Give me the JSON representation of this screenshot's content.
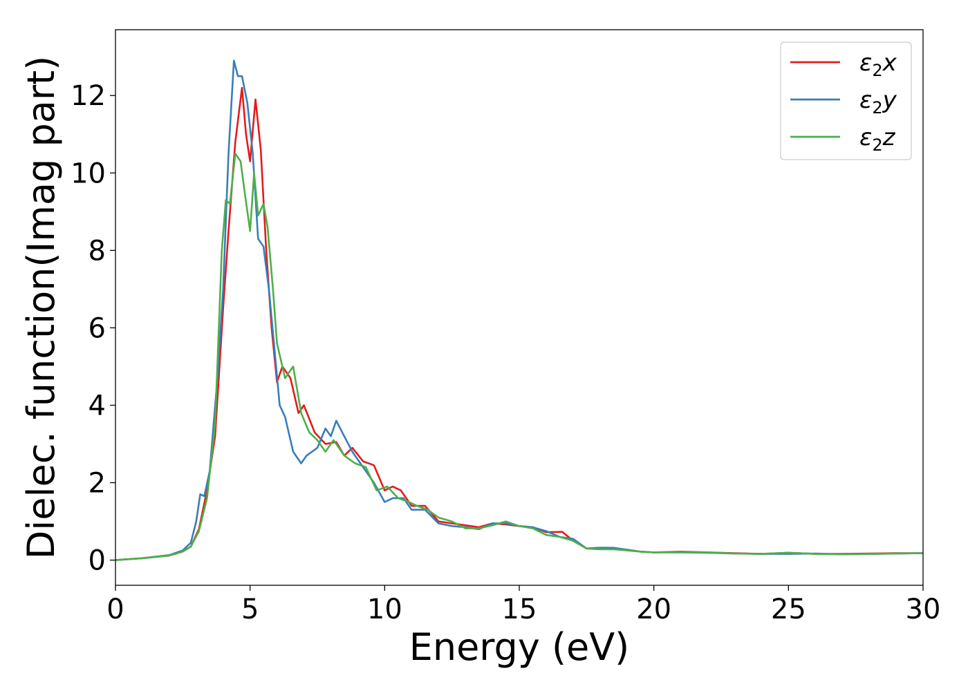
{
  "chart_data": {
    "type": "line",
    "title": "",
    "xlabel": "Energy (eV)",
    "ylabel": "Dielec. function(Imag part)",
    "xlim": [
      0,
      30
    ],
    "ylim": [
      -0.65,
      13.7
    ],
    "xticks": [
      0,
      5,
      10,
      15,
      20,
      25,
      30
    ],
    "yticks": [
      0,
      2,
      4,
      6,
      8,
      10,
      12
    ],
    "xtick_labels": [
      "0",
      "5",
      "10",
      "15",
      "20",
      "25",
      "30"
    ],
    "ytick_labels": [
      "0",
      "2",
      "4",
      "6",
      "8",
      "10",
      "12"
    ],
    "grid": false,
    "legend_position": "top-right",
    "series": [
      {
        "name": "ε2x",
        "symbol": "ε",
        "subscript": "2",
        "suffix": "x",
        "color": "#e41a1c",
        "x": [
          0,
          1,
          2,
          2.5,
          2.8,
          3.1,
          3.4,
          3.7,
          4.0,
          4.2,
          4.45,
          4.7,
          4.85,
          5.0,
          5.2,
          5.4,
          5.6,
          5.8,
          6.0,
          6.2,
          6.5,
          6.8,
          7.0,
          7.4,
          7.8,
          8.2,
          8.5,
          8.8,
          9.2,
          9.6,
          10.0,
          10.3,
          10.6,
          11.0,
          11.5,
          12.0,
          12.5,
          13.0,
          13.5,
          14.0,
          14.5,
          15.0,
          15.5,
          16.0,
          16.6,
          17.0,
          17.5,
          18.0,
          18.5,
          19.0,
          19.5,
          20.0,
          21.0,
          22.0,
          23.0,
          24.0,
          25.0,
          26.0,
          27.0,
          28.0,
          29.0,
          30.0
        ],
        "values": [
          0,
          0.05,
          0.12,
          0.22,
          0.35,
          0.8,
          1.8,
          3.2,
          6.5,
          8.5,
          10.8,
          12.2,
          11.0,
          10.3,
          11.9,
          10.6,
          8.0,
          6.0,
          4.6,
          5.0,
          4.7,
          3.8,
          4.0,
          3.3,
          3.0,
          3.05,
          2.7,
          2.9,
          2.55,
          2.45,
          1.8,
          1.9,
          1.8,
          1.4,
          1.4,
          1.0,
          0.95,
          0.9,
          0.85,
          0.95,
          0.92,
          0.88,
          0.85,
          0.72,
          0.73,
          0.5,
          0.3,
          0.32,
          0.3,
          0.27,
          0.22,
          0.2,
          0.22,
          0.2,
          0.18,
          0.16,
          0.19,
          0.16,
          0.16,
          0.17,
          0.18,
          0.18
        ]
      },
      {
        "name": "ε2y",
        "symbol": "ε",
        "subscript": "2",
        "suffix": "y",
        "color": "#377eb8",
        "x": [
          0,
          1,
          2,
          2.5,
          2.8,
          3.0,
          3.15,
          3.3,
          3.5,
          3.8,
          4.0,
          4.2,
          4.4,
          4.55,
          4.7,
          4.9,
          5.1,
          5.3,
          5.5,
          5.7,
          5.9,
          6.1,
          6.3,
          6.6,
          6.9,
          7.1,
          7.5,
          7.8,
          8.0,
          8.2,
          8.5,
          8.8,
          9.2,
          9.6,
          10.0,
          10.3,
          10.7,
          11.0,
          11.5,
          12.0,
          12.5,
          13.0,
          13.5,
          14.0,
          14.5,
          15.0,
          15.5,
          16.0,
          16.5,
          17.0,
          17.5,
          18.0,
          18.5,
          19.0,
          19.5,
          20.0,
          21.0,
          22.0,
          23.0,
          24.0,
          25.0,
          26.0,
          27.0,
          28.0,
          29.0,
          30.0
        ],
        "values": [
          0,
          0.05,
          0.13,
          0.25,
          0.45,
          1.0,
          1.7,
          1.65,
          2.3,
          4.8,
          7.0,
          10.5,
          12.9,
          12.5,
          12.5,
          11.8,
          10.5,
          8.3,
          8.1,
          7.0,
          5.5,
          4.0,
          3.7,
          2.8,
          2.5,
          2.7,
          2.9,
          3.4,
          3.2,
          3.6,
          3.2,
          2.8,
          2.4,
          2.0,
          1.5,
          1.6,
          1.6,
          1.3,
          1.3,
          0.95,
          0.88,
          0.85,
          0.8,
          0.95,
          0.95,
          0.88,
          0.85,
          0.75,
          0.6,
          0.55,
          0.3,
          0.32,
          0.32,
          0.27,
          0.22,
          0.2,
          0.2,
          0.19,
          0.17,
          0.16,
          0.16,
          0.17,
          0.15,
          0.16,
          0.17,
          0.18
        ]
      },
      {
        "name": "ε2z",
        "symbol": "ε",
        "subscript": "2",
        "suffix": "z",
        "color": "#4daf4a",
        "x": [
          0,
          1,
          2,
          2.5,
          2.8,
          3.1,
          3.4,
          3.7,
          3.95,
          4.1,
          4.25,
          4.45,
          4.65,
          4.8,
          5.0,
          5.15,
          5.3,
          5.5,
          5.65,
          5.85,
          6.0,
          6.3,
          6.6,
          6.9,
          7.2,
          7.5,
          7.8,
          8.1,
          8.5,
          8.9,
          9.3,
          9.7,
          10.1,
          10.5,
          10.9,
          11.2,
          11.6,
          12.0,
          12.5,
          13.0,
          13.5,
          14.0,
          14.5,
          15.0,
          15.5,
          16.0,
          16.5,
          17.0,
          17.5,
          18.0,
          18.5,
          19.0,
          19.5,
          20.0,
          21.0,
          22.0,
          23.0,
          24.0,
          25.0,
          26.0,
          27.0,
          28.0,
          29.0,
          30.0
        ],
        "values": [
          0,
          0.05,
          0.12,
          0.22,
          0.35,
          0.75,
          1.6,
          3.5,
          8.0,
          9.3,
          9.2,
          10.5,
          10.3,
          9.5,
          8.5,
          10.0,
          8.9,
          9.2,
          8.6,
          7.0,
          5.6,
          4.7,
          5.0,
          3.8,
          3.3,
          3.1,
          2.8,
          3.1,
          2.7,
          2.5,
          2.4,
          1.8,
          1.9,
          1.6,
          1.5,
          1.4,
          1.3,
          1.1,
          1.0,
          0.82,
          0.82,
          0.9,
          1.0,
          0.88,
          0.82,
          0.65,
          0.6,
          0.5,
          0.3,
          0.28,
          0.28,
          0.25,
          0.22,
          0.2,
          0.21,
          0.2,
          0.17,
          0.16,
          0.19,
          0.16,
          0.15,
          0.16,
          0.17,
          0.18
        ]
      }
    ]
  }
}
